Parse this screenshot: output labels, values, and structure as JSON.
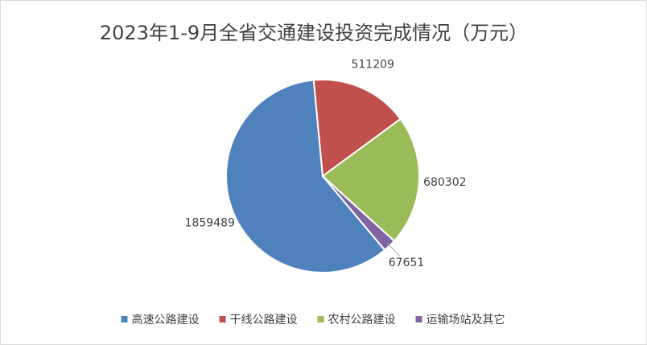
{
  "chart_data": {
    "type": "pie",
    "title": "2023年1-9月全省交通建设投资完成情况（万元）",
    "categories": [
      "高速公路建设",
      "干线公路建设",
      "农村公路建设",
      "运输场站及其它"
    ],
    "values": [
      1859489,
      511209,
      680302,
      67651
    ],
    "colors": [
      "#4f81bd",
      "#c0504d",
      "#9bbb59",
      "#8064a2"
    ],
    "legend": "bottom"
  }
}
